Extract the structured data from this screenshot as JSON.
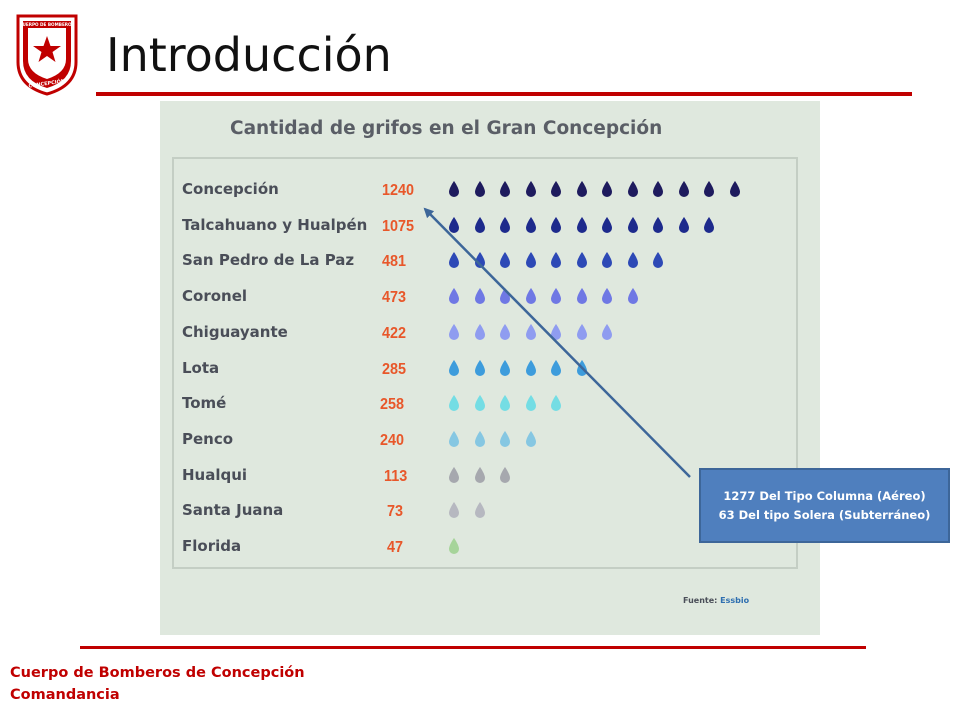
{
  "slide": {
    "title": "Introducción",
    "logo": {
      "top_text": "CUERPO DE BOMBEROS",
      "bottom_text": "CONCEPCIÓN",
      "color": "#c00000"
    }
  },
  "chart_data": {
    "type": "table",
    "title": "Cantidad de grifos en el Gran Concepción",
    "rows": [
      {
        "label": "Concepción",
        "value": 1240,
        "value_text": "1240",
        "icons": 12,
        "color": "#1e1b5e"
      },
      {
        "label": "Talcahuano y Hualpén",
        "value": 1075,
        "value_text": "1075",
        "icons": 11,
        "color": "#1d2a8c"
      },
      {
        "label": "San Pedro de La Paz",
        "value": 481,
        "value_text": "481",
        "icons": 9,
        "color": "#2d49b6"
      },
      {
        "label": "Coronel",
        "value": 473,
        "value_text": "473",
        "icons": 8,
        "color": "#6f78e4"
      },
      {
        "label": "Chiguayante",
        "value": 422,
        "value_text": "422",
        "icons": 7,
        "color": "#8f9cf0"
      },
      {
        "label": "Lota",
        "value": 285,
        "value_text": "285",
        "icons": 6,
        "color": "#3d9cdc"
      },
      {
        "label": "Tomé",
        "value": 258,
        "value_text": "258",
        "icons": 5,
        "color": "#74dde4"
      },
      {
        "label": "Penco",
        "value": 240,
        "value_text": "240",
        "icons": 4,
        "color": "#86c7e2"
      },
      {
        "label": "Hualqui",
        "value": 113,
        "value_text": "113",
        "icons": 3,
        "color": "#a6a8ae"
      },
      {
        "label": "Santa Juana",
        "value": 73,
        "value_text": "73",
        "icons": 2,
        "color": "#b6b8c0"
      },
      {
        "label": "Florida",
        "value": 47,
        "value_text": "47",
        "icons": 1,
        "color": "#a6d49a"
      }
    ],
    "source_label": "Fuente:",
    "source_value": "Essbio",
    "value_color": "#e8572a"
  },
  "callout": {
    "line1": "1277 Del Tipo Columna (Aéreo)",
    "line2": "63 Del tipo Solera (Subterráneo)",
    "color": "#4f7fbe"
  },
  "footer": {
    "line1": "Cuerpo de Bomberos de Concepción",
    "line2": "Comandancia",
    "color": "#c00000"
  }
}
